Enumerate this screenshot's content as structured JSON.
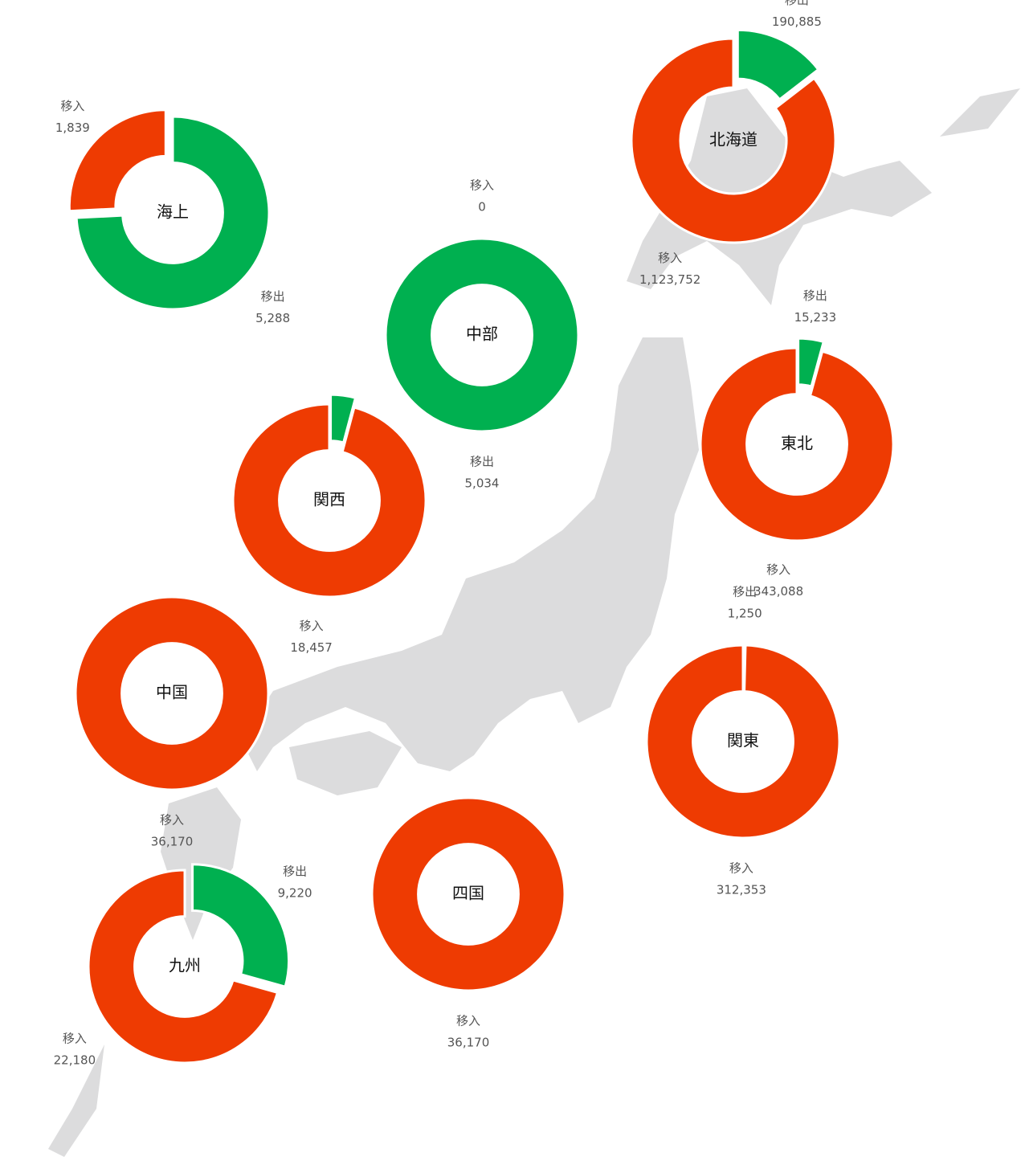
{
  "chart_data": [
    {
      "type": "donut",
      "center_label": "海上",
      "categories": [
        "移出",
        "移入"
      ],
      "values": [
        5288,
        1839
      ],
      "value_labels": [
        "5,288",
        "1,839"
      ],
      "colors": [
        "#00b050",
        "#ee3b02"
      ],
      "explode": [
        0,
        1
      ]
    },
    {
      "type": "donut",
      "center_label": "北海道",
      "categories": [
        "移出",
        "移入"
      ],
      "values": [
        190885,
        1123752
      ],
      "value_labels": [
        "190,885",
        "1,123,752"
      ],
      "colors": [
        "#00b050",
        "#ee3b02"
      ],
      "explode": [
        1,
        0
      ]
    },
    {
      "type": "donut",
      "center_label": "中部",
      "categories": [
        "移出",
        "移入"
      ],
      "values": [
        5034,
        0
      ],
      "value_labels": [
        "5,034",
        "0"
      ],
      "colors": [
        "#00b050",
        "#ee3b02"
      ],
      "explode": [
        0,
        0
      ]
    },
    {
      "type": "donut",
      "center_label": "関西",
      "categories": [
        null,
        "移入"
      ],
      "values": [
        800,
        18457
      ],
      "value_labels": [
        null,
        "18,457"
      ],
      "colors": [
        "#00b050",
        "#ee3b02"
      ],
      "explode": [
        1,
        0
      ]
    },
    {
      "type": "donut",
      "center_label": "東北",
      "categories": [
        "移出",
        "移入"
      ],
      "values": [
        15233,
        343088
      ],
      "value_labels": [
        "15,233",
        "343,088"
      ],
      "colors": [
        "#00b050",
        "#ee3b02"
      ],
      "explode": [
        1,
        0
      ]
    },
    {
      "type": "donut",
      "center_label": "中国",
      "categories": [
        "移入"
      ],
      "values": [
        36170
      ],
      "value_labels": [
        "36,170"
      ],
      "colors": [
        "#ee3b02"
      ],
      "explode": [
        0
      ]
    },
    {
      "type": "donut",
      "center_label": "関東",
      "categories": [
        "移出",
        "移入"
      ],
      "values": [
        1250,
        312353
      ],
      "value_labels": [
        "1,250",
        "312,353"
      ],
      "colors": [
        "#00b050",
        "#ee3b02"
      ],
      "explode": [
        0,
        0
      ]
    },
    {
      "type": "donut",
      "center_label": "四国",
      "categories": [
        "移入"
      ],
      "values": [
        36170
      ],
      "value_labels": [
        "36,170"
      ],
      "colors": [
        "#ee3b02"
      ],
      "explode": [
        0
      ]
    },
    {
      "type": "donut",
      "center_label": "九州",
      "categories": [
        "移出",
        "移入"
      ],
      "values": [
        9220,
        22180
      ],
      "value_labels": [
        "9,220",
        "22,180"
      ],
      "colors": [
        "#00b050",
        "#ee3b02"
      ],
      "explode": [
        1,
        0
      ]
    }
  ]
}
